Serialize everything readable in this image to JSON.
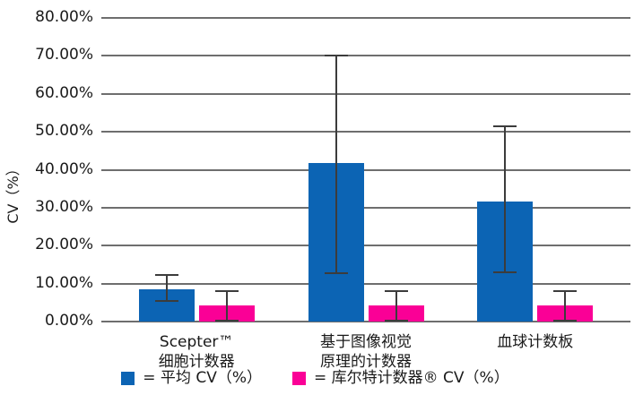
{
  "chart_data": {
    "type": "bar",
    "title": "",
    "ylabel": "CV（%）",
    "xlabel": "",
    "ylim": [
      0,
      80
    ],
    "ytick_values": [
      0,
      10,
      20,
      30,
      40,
      50,
      60,
      70,
      80
    ],
    "ytick_labels": [
      "0.00%",
      "10.00%",
      "20.00%",
      "30.00%",
      "40.00%",
      "50.00%",
      "60.00%",
      "70.00%",
      "80.00%"
    ],
    "grid": "horizontal",
    "legend_position": "bottom",
    "categories": [
      {
        "lines": [
          "Scepter™",
          "细胞计数器"
        ]
      },
      {
        "lines": [
          "基于图像视觉",
          "原理的计数器"
        ]
      },
      {
        "lines": [
          "血球计数板"
        ]
      }
    ],
    "series": [
      {
        "name": "平均 CV（%）",
        "color": "#0C64B4",
        "values": [
          8.6,
          41.7,
          31.7
        ],
        "error_low": [
          5.5,
          12.8,
          12.9
        ],
        "error_high": [
          12.3,
          70.0,
          51.5
        ]
      },
      {
        "name": "库尔特计数器® CV（%）",
        "color": "#FA0096",
        "values": [
          4.2,
          4.2,
          4.2
        ],
        "error_low": [
          0.3,
          0.3,
          0.3
        ],
        "error_high": [
          8.1,
          8.1,
          8.1
        ]
      }
    ]
  },
  "legend": {
    "items": [
      {
        "label": "= 平均 CV（%）",
        "color": "#0C64B4"
      },
      {
        "label": "= 库尔特计数器® CV（%）",
        "color": "#FA0096"
      }
    ]
  },
  "colors": {
    "grid": "#6E6E6E",
    "error_bar": "#3C3C3C",
    "text": "#1A1A1A",
    "background": "#FFFFFF"
  }
}
